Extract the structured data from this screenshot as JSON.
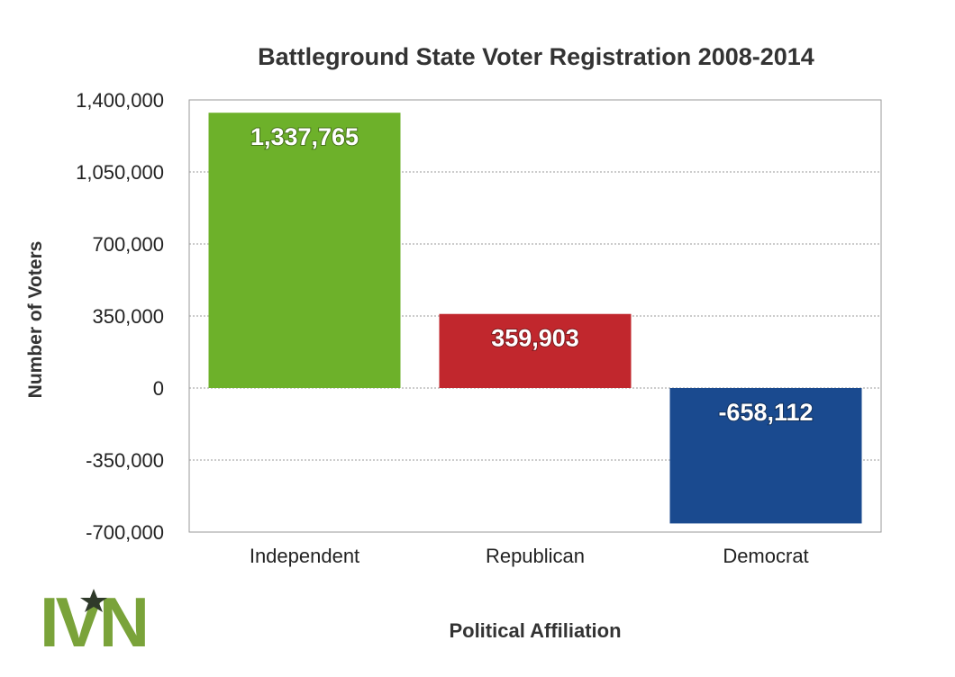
{
  "chart_data": {
    "type": "bar",
    "title": "Battleground State Voter Registration 2008-2014",
    "xlabel": "Political Affiliation",
    "ylabel": "Number of Voters",
    "categories": [
      "Independent",
      "Republican",
      "Democrat"
    ],
    "values": [
      1337765,
      359903,
      -658112
    ],
    "data_labels": [
      "1,337,765",
      "359,903",
      "-658,112"
    ],
    "colors": [
      "#6db12a",
      "#c1272d",
      "#1a4a8f"
    ],
    "ylim": [
      -700000,
      1400000
    ],
    "yticks": [
      1400000,
      1050000,
      700000,
      350000,
      0,
      -350000,
      -700000
    ],
    "ytick_labels": [
      "1,400,000",
      "1,050,000",
      "700,000",
      "350,000",
      "0",
      "-350,000",
      "-700,000"
    ],
    "grid": true,
    "legend": false
  },
  "logo": {
    "text": "IVN",
    "color": "#7aa33a",
    "star_color": "#2f3a2a"
  }
}
